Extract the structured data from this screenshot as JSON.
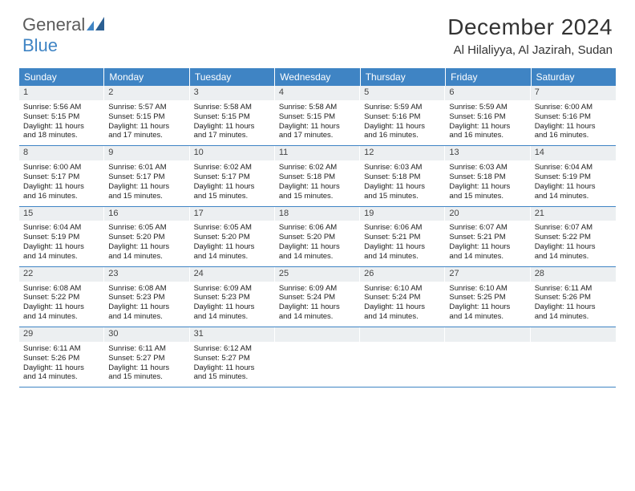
{
  "logo": {
    "general": "General",
    "blue": "Blue"
  },
  "title": {
    "month": "December 2024",
    "location": "Al Hilaliyya, Al Jazirah, Sudan"
  },
  "colors": {
    "header_bg": "#3f84c4",
    "header_text": "#ffffff",
    "daynum_bg": "#eceff1",
    "rule": "#3f84c4",
    "brand_gray": "#5b5b5b",
    "brand_blue": "#3f84c4"
  },
  "day_headers": [
    "Sunday",
    "Monday",
    "Tuesday",
    "Wednesday",
    "Thursday",
    "Friday",
    "Saturday"
  ],
  "weeks": [
    [
      {
        "num": "1",
        "sunrise": "Sunrise: 5:56 AM",
        "sunset": "Sunset: 5:15 PM",
        "day1": "Daylight: 11 hours",
        "day2": "and 18 minutes."
      },
      {
        "num": "2",
        "sunrise": "Sunrise: 5:57 AM",
        "sunset": "Sunset: 5:15 PM",
        "day1": "Daylight: 11 hours",
        "day2": "and 17 minutes."
      },
      {
        "num": "3",
        "sunrise": "Sunrise: 5:58 AM",
        "sunset": "Sunset: 5:15 PM",
        "day1": "Daylight: 11 hours",
        "day2": "and 17 minutes."
      },
      {
        "num": "4",
        "sunrise": "Sunrise: 5:58 AM",
        "sunset": "Sunset: 5:15 PM",
        "day1": "Daylight: 11 hours",
        "day2": "and 17 minutes."
      },
      {
        "num": "5",
        "sunrise": "Sunrise: 5:59 AM",
        "sunset": "Sunset: 5:16 PM",
        "day1": "Daylight: 11 hours",
        "day2": "and 16 minutes."
      },
      {
        "num": "6",
        "sunrise": "Sunrise: 5:59 AM",
        "sunset": "Sunset: 5:16 PM",
        "day1": "Daylight: 11 hours",
        "day2": "and 16 minutes."
      },
      {
        "num": "7",
        "sunrise": "Sunrise: 6:00 AM",
        "sunset": "Sunset: 5:16 PM",
        "day1": "Daylight: 11 hours",
        "day2": "and 16 minutes."
      }
    ],
    [
      {
        "num": "8",
        "sunrise": "Sunrise: 6:00 AM",
        "sunset": "Sunset: 5:17 PM",
        "day1": "Daylight: 11 hours",
        "day2": "and 16 minutes."
      },
      {
        "num": "9",
        "sunrise": "Sunrise: 6:01 AM",
        "sunset": "Sunset: 5:17 PM",
        "day1": "Daylight: 11 hours",
        "day2": "and 15 minutes."
      },
      {
        "num": "10",
        "sunrise": "Sunrise: 6:02 AM",
        "sunset": "Sunset: 5:17 PM",
        "day1": "Daylight: 11 hours",
        "day2": "and 15 minutes."
      },
      {
        "num": "11",
        "sunrise": "Sunrise: 6:02 AM",
        "sunset": "Sunset: 5:18 PM",
        "day1": "Daylight: 11 hours",
        "day2": "and 15 minutes."
      },
      {
        "num": "12",
        "sunrise": "Sunrise: 6:03 AM",
        "sunset": "Sunset: 5:18 PM",
        "day1": "Daylight: 11 hours",
        "day2": "and 15 minutes."
      },
      {
        "num": "13",
        "sunrise": "Sunrise: 6:03 AM",
        "sunset": "Sunset: 5:18 PM",
        "day1": "Daylight: 11 hours",
        "day2": "and 15 minutes."
      },
      {
        "num": "14",
        "sunrise": "Sunrise: 6:04 AM",
        "sunset": "Sunset: 5:19 PM",
        "day1": "Daylight: 11 hours",
        "day2": "and 14 minutes."
      }
    ],
    [
      {
        "num": "15",
        "sunrise": "Sunrise: 6:04 AM",
        "sunset": "Sunset: 5:19 PM",
        "day1": "Daylight: 11 hours",
        "day2": "and 14 minutes."
      },
      {
        "num": "16",
        "sunrise": "Sunrise: 6:05 AM",
        "sunset": "Sunset: 5:20 PM",
        "day1": "Daylight: 11 hours",
        "day2": "and 14 minutes."
      },
      {
        "num": "17",
        "sunrise": "Sunrise: 6:05 AM",
        "sunset": "Sunset: 5:20 PM",
        "day1": "Daylight: 11 hours",
        "day2": "and 14 minutes."
      },
      {
        "num": "18",
        "sunrise": "Sunrise: 6:06 AM",
        "sunset": "Sunset: 5:20 PM",
        "day1": "Daylight: 11 hours",
        "day2": "and 14 minutes."
      },
      {
        "num": "19",
        "sunrise": "Sunrise: 6:06 AM",
        "sunset": "Sunset: 5:21 PM",
        "day1": "Daylight: 11 hours",
        "day2": "and 14 minutes."
      },
      {
        "num": "20",
        "sunrise": "Sunrise: 6:07 AM",
        "sunset": "Sunset: 5:21 PM",
        "day1": "Daylight: 11 hours",
        "day2": "and 14 minutes."
      },
      {
        "num": "21",
        "sunrise": "Sunrise: 6:07 AM",
        "sunset": "Sunset: 5:22 PM",
        "day1": "Daylight: 11 hours",
        "day2": "and 14 minutes."
      }
    ],
    [
      {
        "num": "22",
        "sunrise": "Sunrise: 6:08 AM",
        "sunset": "Sunset: 5:22 PM",
        "day1": "Daylight: 11 hours",
        "day2": "and 14 minutes."
      },
      {
        "num": "23",
        "sunrise": "Sunrise: 6:08 AM",
        "sunset": "Sunset: 5:23 PM",
        "day1": "Daylight: 11 hours",
        "day2": "and 14 minutes."
      },
      {
        "num": "24",
        "sunrise": "Sunrise: 6:09 AM",
        "sunset": "Sunset: 5:23 PM",
        "day1": "Daylight: 11 hours",
        "day2": "and 14 minutes."
      },
      {
        "num": "25",
        "sunrise": "Sunrise: 6:09 AM",
        "sunset": "Sunset: 5:24 PM",
        "day1": "Daylight: 11 hours",
        "day2": "and 14 minutes."
      },
      {
        "num": "26",
        "sunrise": "Sunrise: 6:10 AM",
        "sunset": "Sunset: 5:24 PM",
        "day1": "Daylight: 11 hours",
        "day2": "and 14 minutes."
      },
      {
        "num": "27",
        "sunrise": "Sunrise: 6:10 AM",
        "sunset": "Sunset: 5:25 PM",
        "day1": "Daylight: 11 hours",
        "day2": "and 14 minutes."
      },
      {
        "num": "28",
        "sunrise": "Sunrise: 6:11 AM",
        "sunset": "Sunset: 5:26 PM",
        "day1": "Daylight: 11 hours",
        "day2": "and 14 minutes."
      }
    ],
    [
      {
        "num": "29",
        "sunrise": "Sunrise: 6:11 AM",
        "sunset": "Sunset: 5:26 PM",
        "day1": "Daylight: 11 hours",
        "day2": "and 14 minutes."
      },
      {
        "num": "30",
        "sunrise": "Sunrise: 6:11 AM",
        "sunset": "Sunset: 5:27 PM",
        "day1": "Daylight: 11 hours",
        "day2": "and 15 minutes."
      },
      {
        "num": "31",
        "sunrise": "Sunrise: 6:12 AM",
        "sunset": "Sunset: 5:27 PM",
        "day1": "Daylight: 11 hours",
        "day2": "and 15 minutes."
      },
      {
        "num": "",
        "sunrise": "",
        "sunset": "",
        "day1": "",
        "day2": ""
      },
      {
        "num": "",
        "sunrise": "",
        "sunset": "",
        "day1": "",
        "day2": ""
      },
      {
        "num": "",
        "sunrise": "",
        "sunset": "",
        "day1": "",
        "day2": ""
      },
      {
        "num": "",
        "sunrise": "",
        "sunset": "",
        "day1": "",
        "day2": ""
      }
    ]
  ]
}
